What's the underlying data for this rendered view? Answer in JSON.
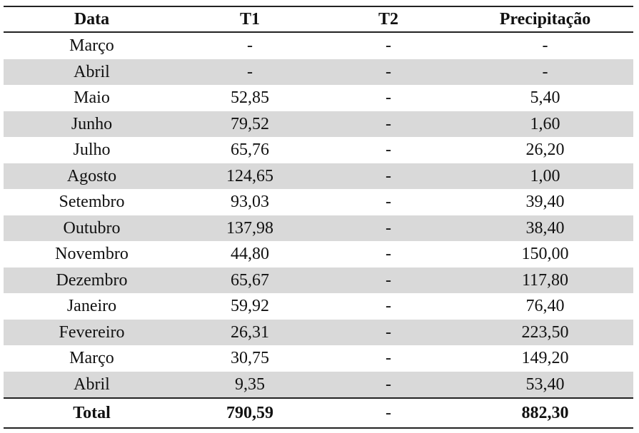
{
  "table": {
    "header": [
      "Data",
      "T1",
      "T2",
      "Precipitação"
    ],
    "rows": [
      [
        "Março",
        "-",
        "-",
        "-"
      ],
      [
        "Abril",
        "-",
        "-",
        "-"
      ],
      [
        "Maio",
        "52,85",
        "-",
        "5,40"
      ],
      [
        "Junho",
        "79,52",
        "-",
        "1,60"
      ],
      [
        "Julho",
        "65,76",
        "-",
        "26,20"
      ],
      [
        "Agosto",
        "124,65",
        "-",
        "1,00"
      ],
      [
        "Setembro",
        "93,03",
        "-",
        "39,40"
      ],
      [
        "Outubro",
        "137,98",
        "-",
        "38,40"
      ],
      [
        "Novembro",
        "44,80",
        "-",
        "150,00"
      ],
      [
        "Dezembro",
        "65,67",
        "-",
        "117,80"
      ],
      [
        "Janeiro",
        "59,92",
        "-",
        "76,40"
      ],
      [
        "Fevereiro",
        "26,31",
        "-",
        "223,50"
      ],
      [
        "Março",
        "30,75",
        "-",
        "149,20"
      ],
      [
        "Abril",
        "9,35",
        "-",
        "53,40"
      ]
    ],
    "total": [
      "Total",
      "790,59",
      "-",
      "882,30"
    ]
  }
}
